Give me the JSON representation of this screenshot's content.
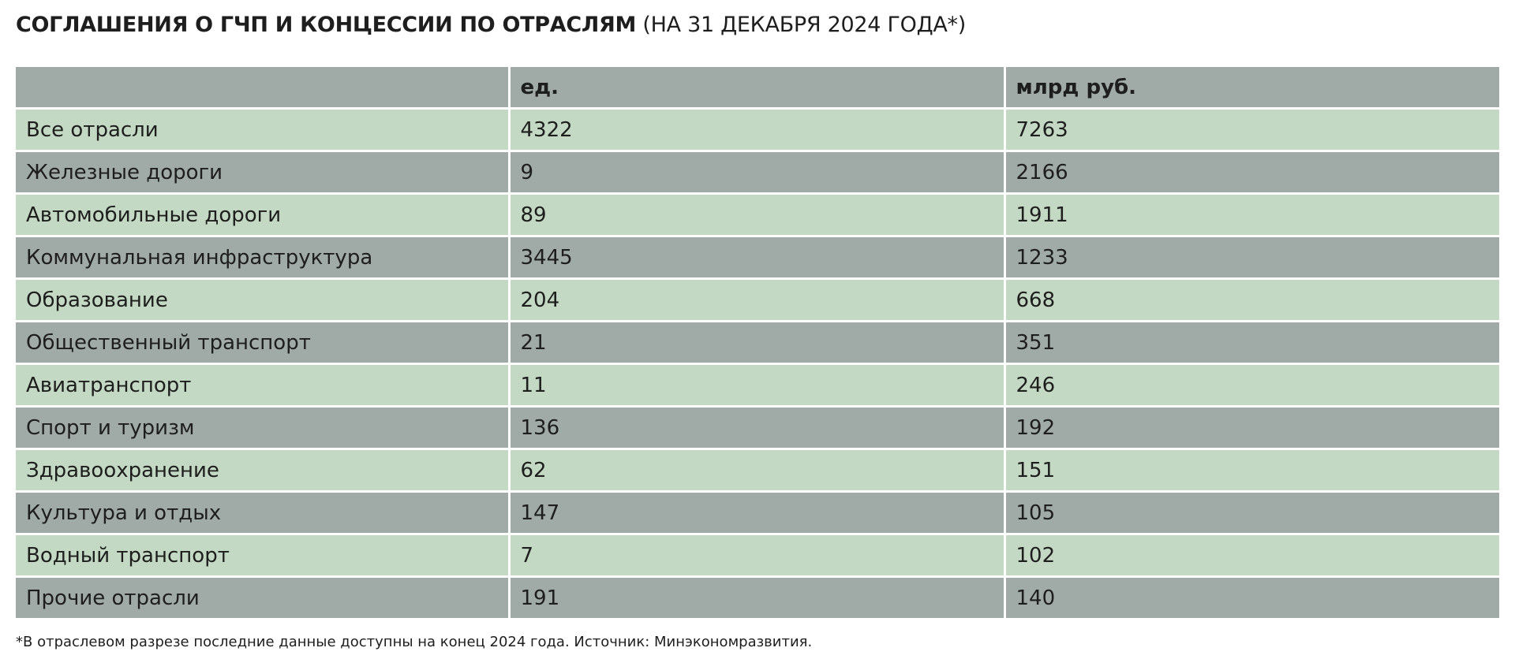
{
  "title": {
    "bold": "СОГЛАШЕНИЯ О ГЧП И КОНЦЕССИИ ПО ОТРАСЛЯМ",
    "normal": "(НА 31 ДЕКАБРЯ 2024 ГОДА*)"
  },
  "table": {
    "headers": [
      "",
      "ед.",
      "млрд руб."
    ],
    "rows": [
      {
        "sector": "Все отрасли",
        "units": "4322",
        "rub_bn": "7263"
      },
      {
        "sector": "Железные дороги",
        "units": "9",
        "rub_bn": "2166"
      },
      {
        "sector": "Автомобильные дороги",
        "units": "89",
        "rub_bn": "1911"
      },
      {
        "sector": "Коммунальная инфраструктура",
        "units": "3445",
        "rub_bn": "1233"
      },
      {
        "sector": "Образование",
        "units": "204",
        "rub_bn": "668"
      },
      {
        "sector": "Общественный транспорт",
        "units": "21",
        "rub_bn": "351"
      },
      {
        "sector": "Авиатранспорт",
        "units": "11",
        "rub_bn": "246"
      },
      {
        "sector": "Спорт и туризм",
        "units": "136",
        "rub_bn": "192"
      },
      {
        "sector": "Здравоохранение",
        "units": "62",
        "rub_bn": "151"
      },
      {
        "sector": "Культура и отдых",
        "units": "147",
        "rub_bn": "105"
      },
      {
        "sector": "Водный транспорт",
        "units": "7",
        "rub_bn": "102"
      },
      {
        "sector": "Прочие отрасли",
        "units": "191",
        "rub_bn": "140"
      }
    ]
  },
  "footnote": "*В отраслевом разрезе последние данные доступны на конец 2024 года. Источник: Минэкономразвития.",
  "colors": {
    "row_light": "#c4d9c3",
    "row_dark": "#a0aaa6",
    "text": "#1e1e1e"
  }
}
